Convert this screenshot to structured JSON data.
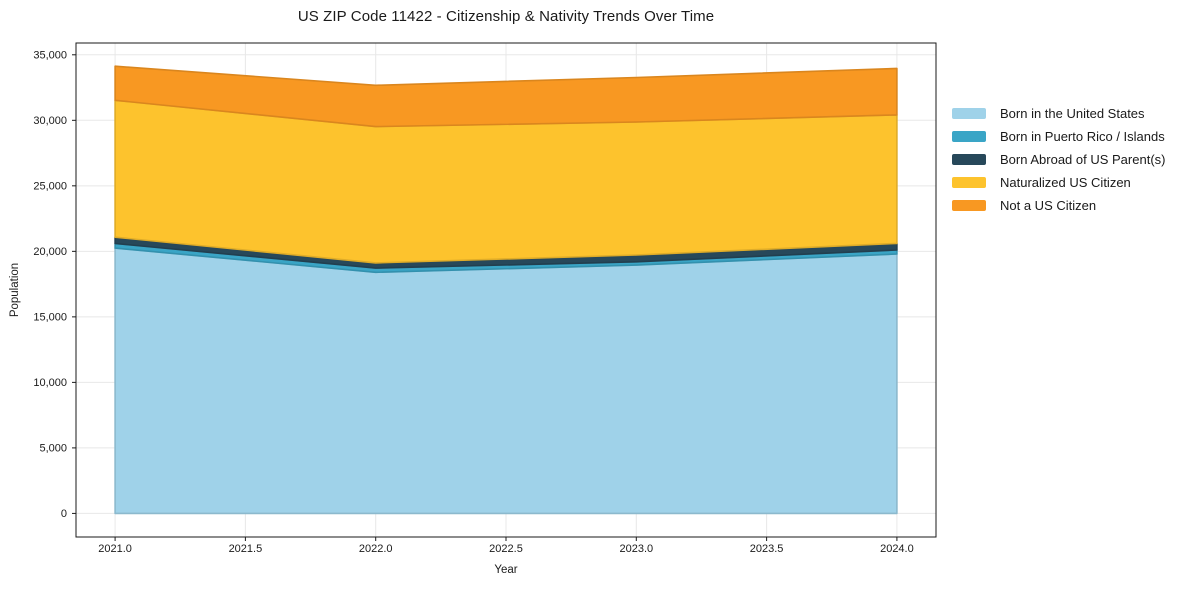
{
  "chart": {
    "title": "US ZIP Code 11422 - Citizenship & Nativity Trends Over Time",
    "xlabel": "Year",
    "ylabel": "Population"
  },
  "chart_data": {
    "type": "area",
    "stacked": true,
    "title": "US ZIP Code 11422 - Citizenship & Nativity Trends Over Time",
    "xlabel": "Year",
    "ylabel": "Population",
    "grid": true,
    "legend_position": "right-outside",
    "x": [
      2021,
      2022,
      2023,
      2024
    ],
    "xlim": [
      2020.85,
      2024.15
    ],
    "ylim": [
      -1800,
      35900
    ],
    "x_ticks": [
      2021.0,
      2021.5,
      2022.0,
      2022.5,
      2023.0,
      2023.5,
      2024.0
    ],
    "x_tick_labels": [
      "2021.0",
      "2021.5",
      "2022.0",
      "2022.5",
      "2023.0",
      "2023.5",
      "2024.0"
    ],
    "y_ticks": [
      0,
      5000,
      10000,
      15000,
      20000,
      25000,
      30000,
      35000
    ],
    "y_tick_labels": [
      "0",
      "5,000",
      "10,000",
      "15,000",
      "20,000",
      "25,000",
      "30,000",
      "35,000"
    ],
    "series": [
      {
        "name": "Born in the United States",
        "color": "#9fd2e9",
        "values": [
          20250,
          18400,
          18950,
          19800
        ]
      },
      {
        "name": "Born in Puerto Rico / Islands",
        "color": "#3aa5c6",
        "values": [
          350,
          320,
          250,
          300
        ]
      },
      {
        "name": "Born Abroad of US Parent(s)",
        "color": "#27485a",
        "values": [
          480,
          400,
          520,
          510
        ]
      },
      {
        "name": "Naturalized US Citizen",
        "color": "#fdc32d",
        "values": [
          10450,
          10400,
          10150,
          9800
        ]
      },
      {
        "name": "Not a US Citizen",
        "color": "#f89822",
        "values": [
          2600,
          3150,
          3400,
          3550
        ]
      }
    ]
  },
  "style": {
    "gridline_color": "#e8e8e8",
    "spine_color": "#1a1a1a",
    "text_color": "#1a1a1a",
    "background": "#ffffff"
  }
}
